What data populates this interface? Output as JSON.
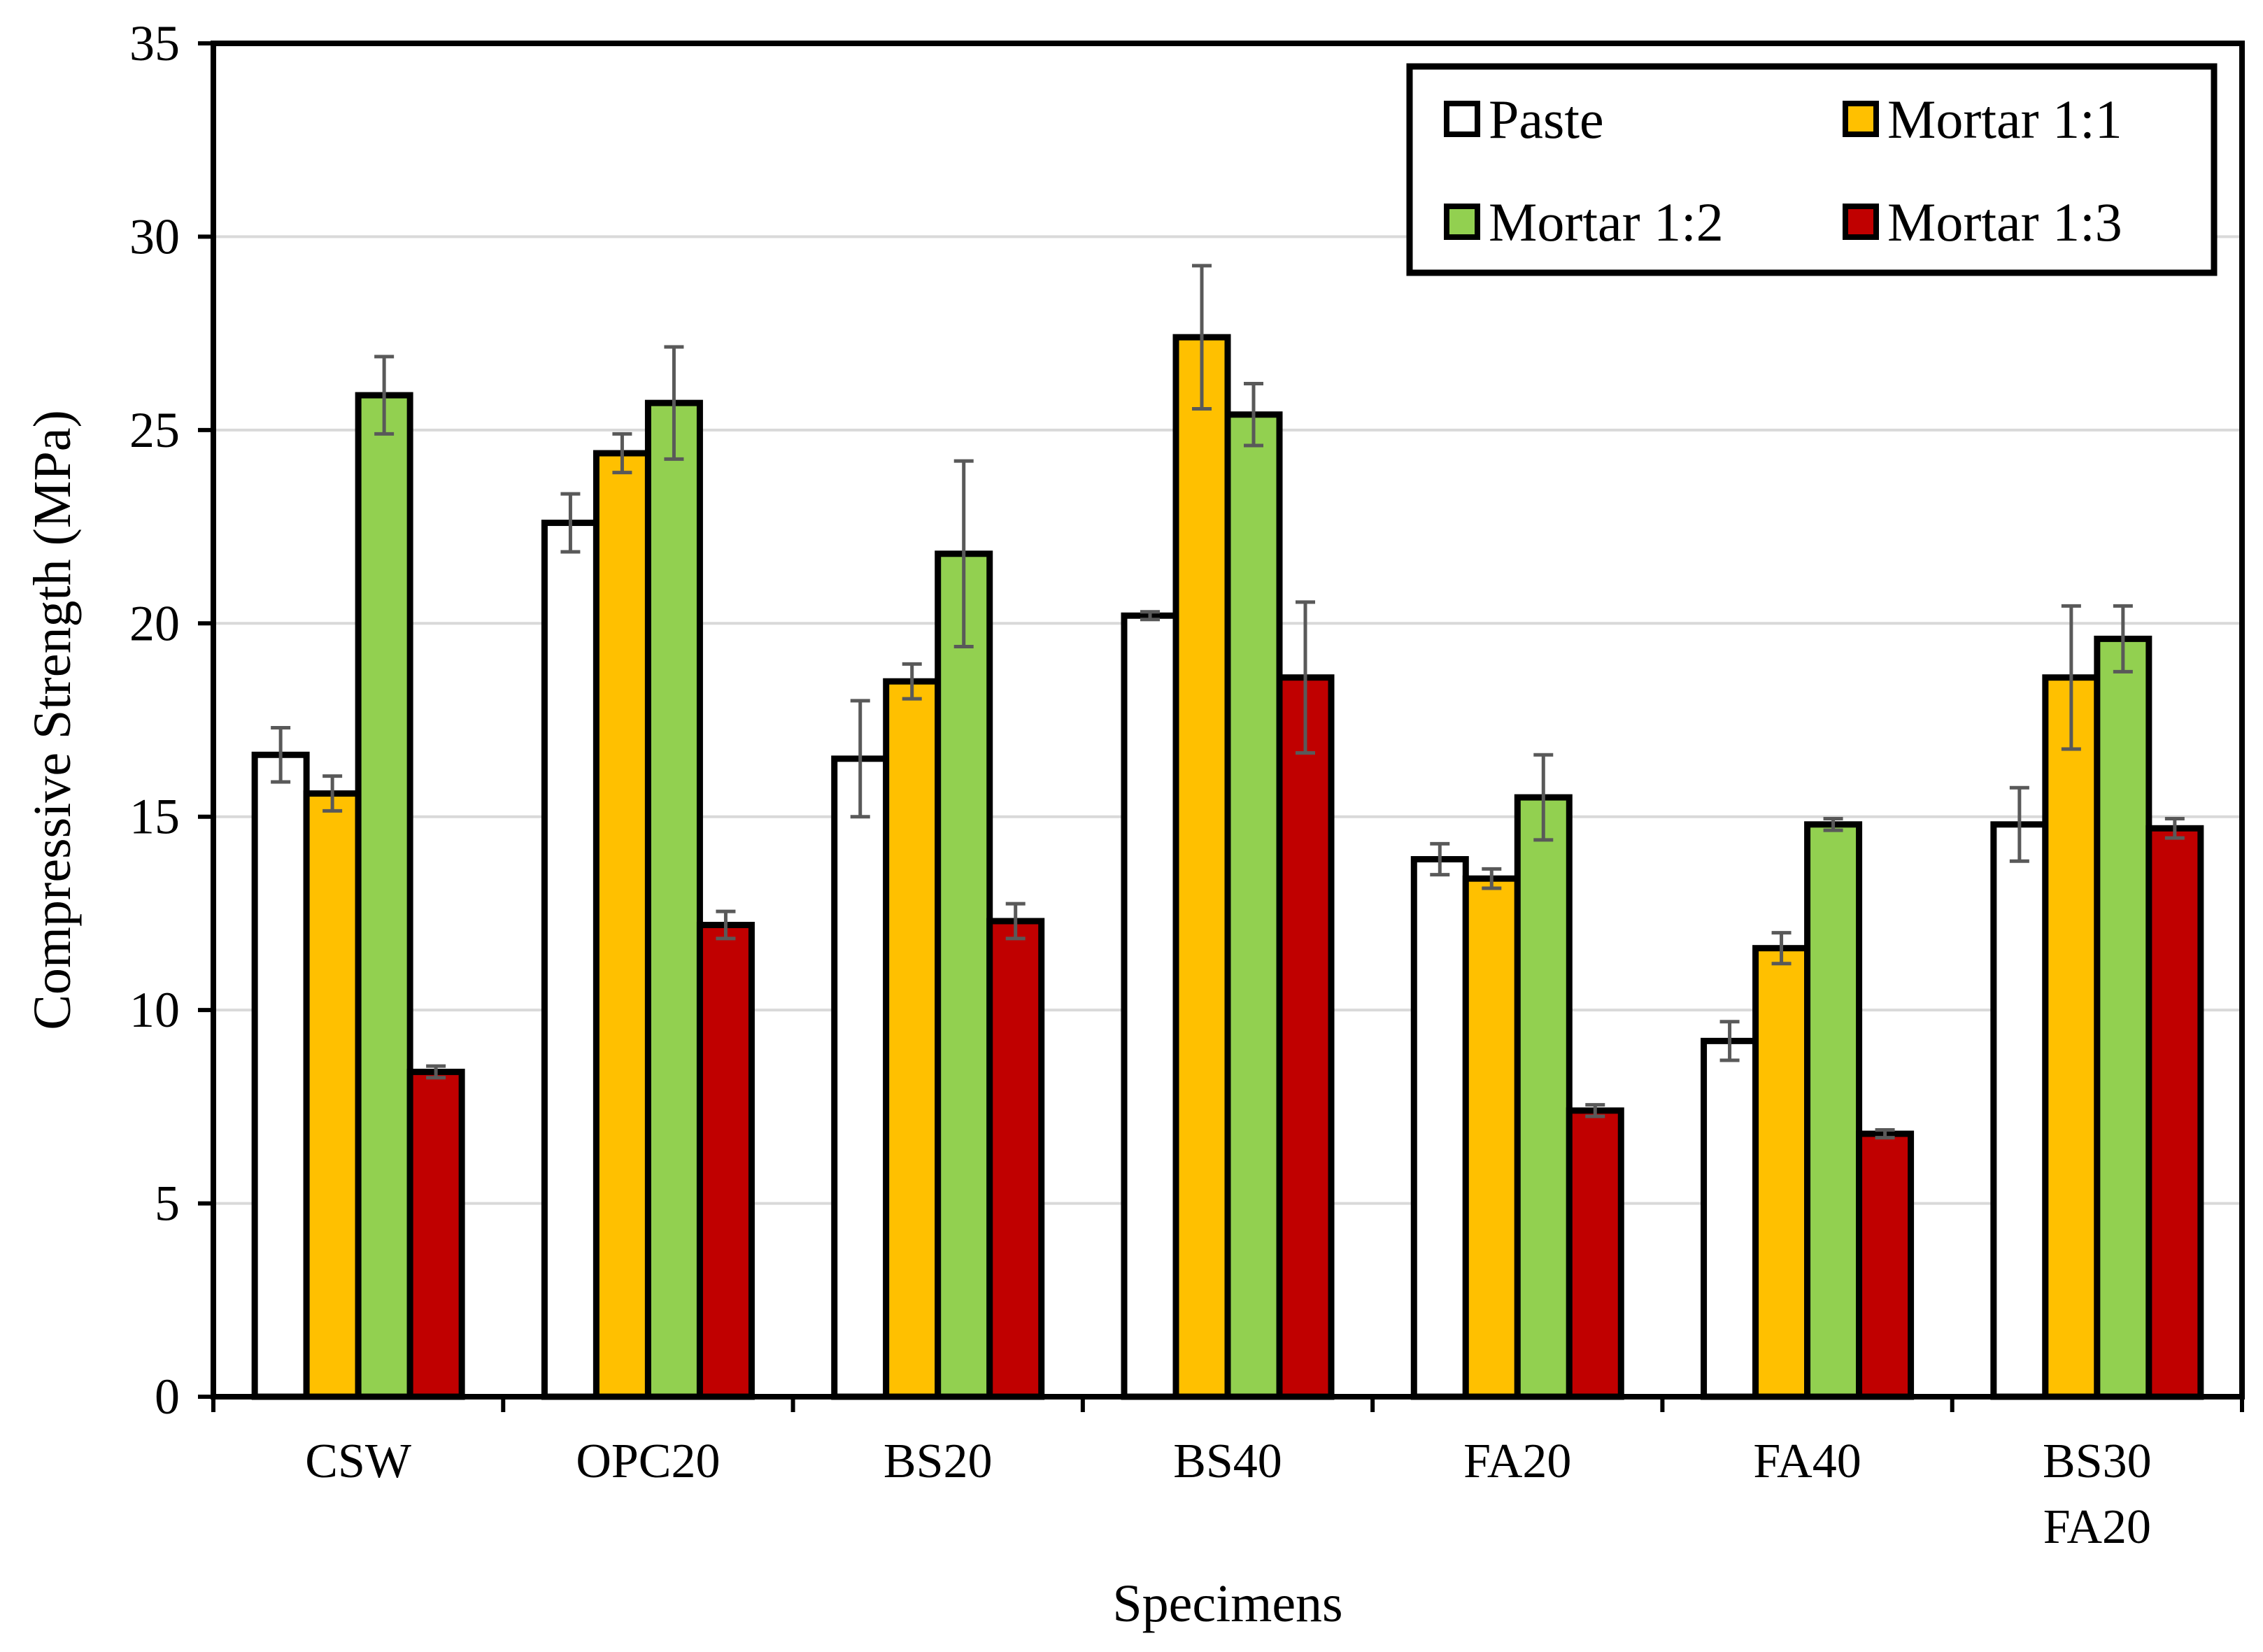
{
  "chart_data": {
    "type": "bar",
    "title": "",
    "xlabel": "Specimens",
    "ylabel": "Compressive Strength (MPa)",
    "ylim": [
      0,
      35
    ],
    "ytick_step": 5,
    "grid": true,
    "legend_position": "top-right",
    "categories": [
      [
        "CSW"
      ],
      [
        "OPC20"
      ],
      [
        "BS20"
      ],
      [
        "BS40"
      ],
      [
        "FA20"
      ],
      [
        "FA40"
      ],
      [
        "BS30",
        "FA20"
      ]
    ],
    "series": [
      {
        "name": "Paste",
        "color": "#ffffff",
        "values": [
          16.6,
          22.6,
          16.5,
          20.2,
          13.9,
          9.2,
          14.8
        ],
        "errors": [
          0.7,
          0.75,
          1.5,
          0.1,
          0.4,
          0.5,
          0.95
        ]
      },
      {
        "name": "Mortar 1:1",
        "color": "#ffc000",
        "values": [
          15.6,
          24.4,
          18.5,
          27.4,
          13.4,
          11.6,
          18.6
        ],
        "errors": [
          0.45,
          0.5,
          0.45,
          1.85,
          0.25,
          0.4,
          1.85
        ]
      },
      {
        "name": "Mortar 1:2",
        "color": "#92d050",
        "values": [
          25.9,
          25.7,
          21.8,
          25.4,
          15.5,
          14.8,
          19.6
        ],
        "errors": [
          1.0,
          1.45,
          2.4,
          0.8,
          1.1,
          0.15,
          0.85
        ]
      },
      {
        "name": "Mortar 1:3",
        "color": "#c00000",
        "values": [
          8.4,
          12.2,
          12.3,
          18.6,
          7.4,
          6.8,
          14.7
        ],
        "errors": [
          0.15,
          0.35,
          0.45,
          1.95,
          0.15,
          0.1,
          0.25
        ]
      }
    ]
  }
}
